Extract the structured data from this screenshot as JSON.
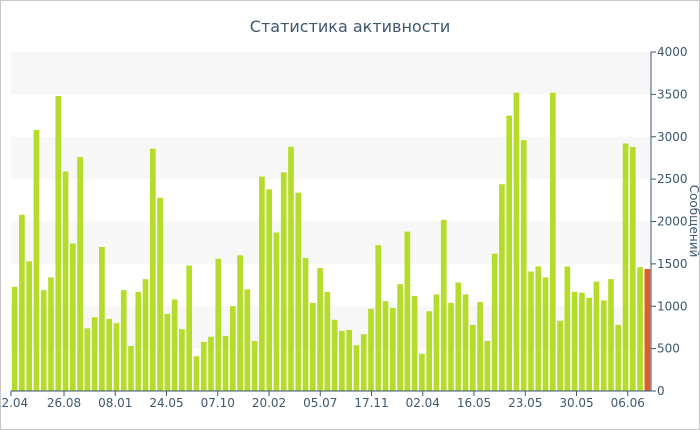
{
  "chart_data": {
    "type": "bar",
    "title": "Статистика активности",
    "ylabel": "Сообщений",
    "ylim": [
      0,
      4000
    ],
    "yticks": [
      "0",
      "500",
      "1000",
      "1500",
      "2000",
      "2500",
      "3000",
      "3500",
      "4000"
    ],
    "xtick_labels": [
      "12.04",
      "26.08",
      "08.01",
      "24.05",
      "07.10",
      "20.02",
      "05.07",
      "17.11",
      "02.04",
      "16.05",
      "23.05",
      "30.05",
      "06.06"
    ],
    "grid": true,
    "series": [
      {
        "color": "#b5dc2a",
        "values": [
          1230,
          2080,
          1530,
          3080,
          1190,
          1340,
          3480,
          2590,
          1740,
          2760,
          740,
          870,
          1700,
          850,
          800,
          1190,
          530,
          1170,
          1320,
          2860,
          2280,
          910,
          1080,
          730,
          1480,
          410,
          580,
          640,
          1560,
          650,
          1000,
          1600,
          1200,
          590,
          2530,
          2380,
          1870,
          2580,
          2880,
          2340,
          1570,
          1040,
          1450,
          1170,
          840,
          710,
          720,
          540,
          670,
          970,
          1720,
          1060,
          980,
          1260,
          1880,
          1120,
          440,
          940,
          1140,
          2020,
          1040,
          1280,
          1140,
          780,
          1050,
          590,
          1620,
          2440,
          3250,
          3520,
          2960,
          1410,
          1470,
          1340,
          3520,
          830,
          1470,
          1170,
          1160,
          1100,
          1290,
          1070,
          1320,
          780,
          2920,
          2880,
          1460
        ]
      }
    ],
    "last_bar": {
      "value": 1440,
      "color": "#e05a2a"
    }
  },
  "colors": {
    "bar": "#b5dc2a",
    "last_bar": "#e05a2a",
    "text": "#3e576f",
    "band": "#f7f7f7",
    "axis": "#3e576f"
  }
}
